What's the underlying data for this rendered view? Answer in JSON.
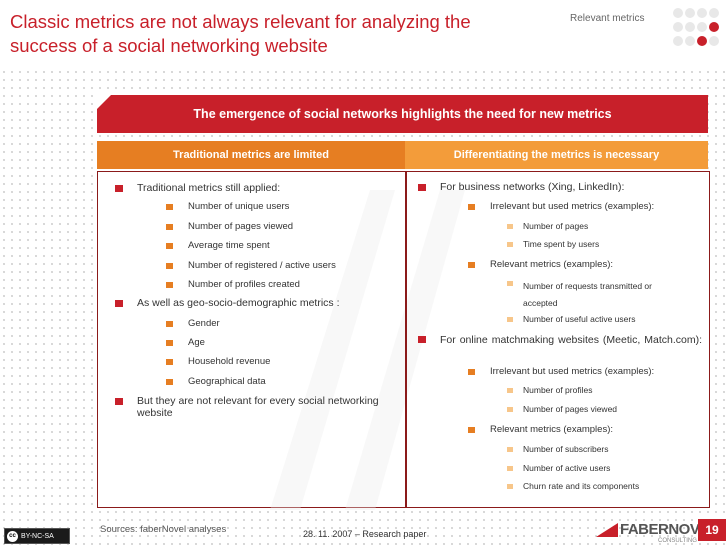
{
  "header": {
    "title": "Classic metrics are not always relevant for analyzing the success of a social networking website",
    "tag": "Relevant metrics"
  },
  "banner": "The emergence of social networks highlights the need for new metrics",
  "left": {
    "heading": "Traditional metrics are limited",
    "intro": "Traditional metrics still applied:",
    "metrics": [
      "Number of unique users",
      "Number of pages viewed",
      "Average time spent",
      "Number of registered / active users",
      "Number of profiles created"
    ],
    "geo_intro": "As well as geo-socio-demographic metrics :",
    "geo": [
      "Gender",
      "Age",
      "Household revenue",
      "Geographical data"
    ],
    "conclusion": "But they are not relevant for every social networking website"
  },
  "right": {
    "heading": "Differentiating the metrics is necessary",
    "business": "For business networks (Xing, LinkedIn):",
    "business_irrelevant": "Irrelevant but used metrics (examples):",
    "business_irrelevant_items": [
      "Number of pages",
      "Time spent by users"
    ],
    "business_relevant": "Relevant metrics (examples):",
    "business_relevant_items": [
      "Number of requests transmitted or accepted",
      "Number of useful active users"
    ],
    "online": "For online matchmaking websites (Meetic, Match.com):",
    "online_irrelevant": "Irrelevant but used metrics (examples):",
    "online_irrelevant_items": [
      "Number of profiles",
      "Number of pages viewed"
    ],
    "online_relevant": "Relevant metrics (examples):",
    "online_relevant_items": [
      "Number of subscribers",
      "Number of active users",
      "Churn rate and its components"
    ]
  },
  "footer": {
    "source": "Sources: faberNovel analyses",
    "date": "28. 11. 2007 – Research paper",
    "license": "BY-NC-SA",
    "brand": "FABERNOVEL",
    "brand_sub": "CONSULTING",
    "page": "19"
  },
  "colors": {
    "red": "#c8202a",
    "orange": "#e67e22",
    "light_orange": "#f39c3a"
  }
}
